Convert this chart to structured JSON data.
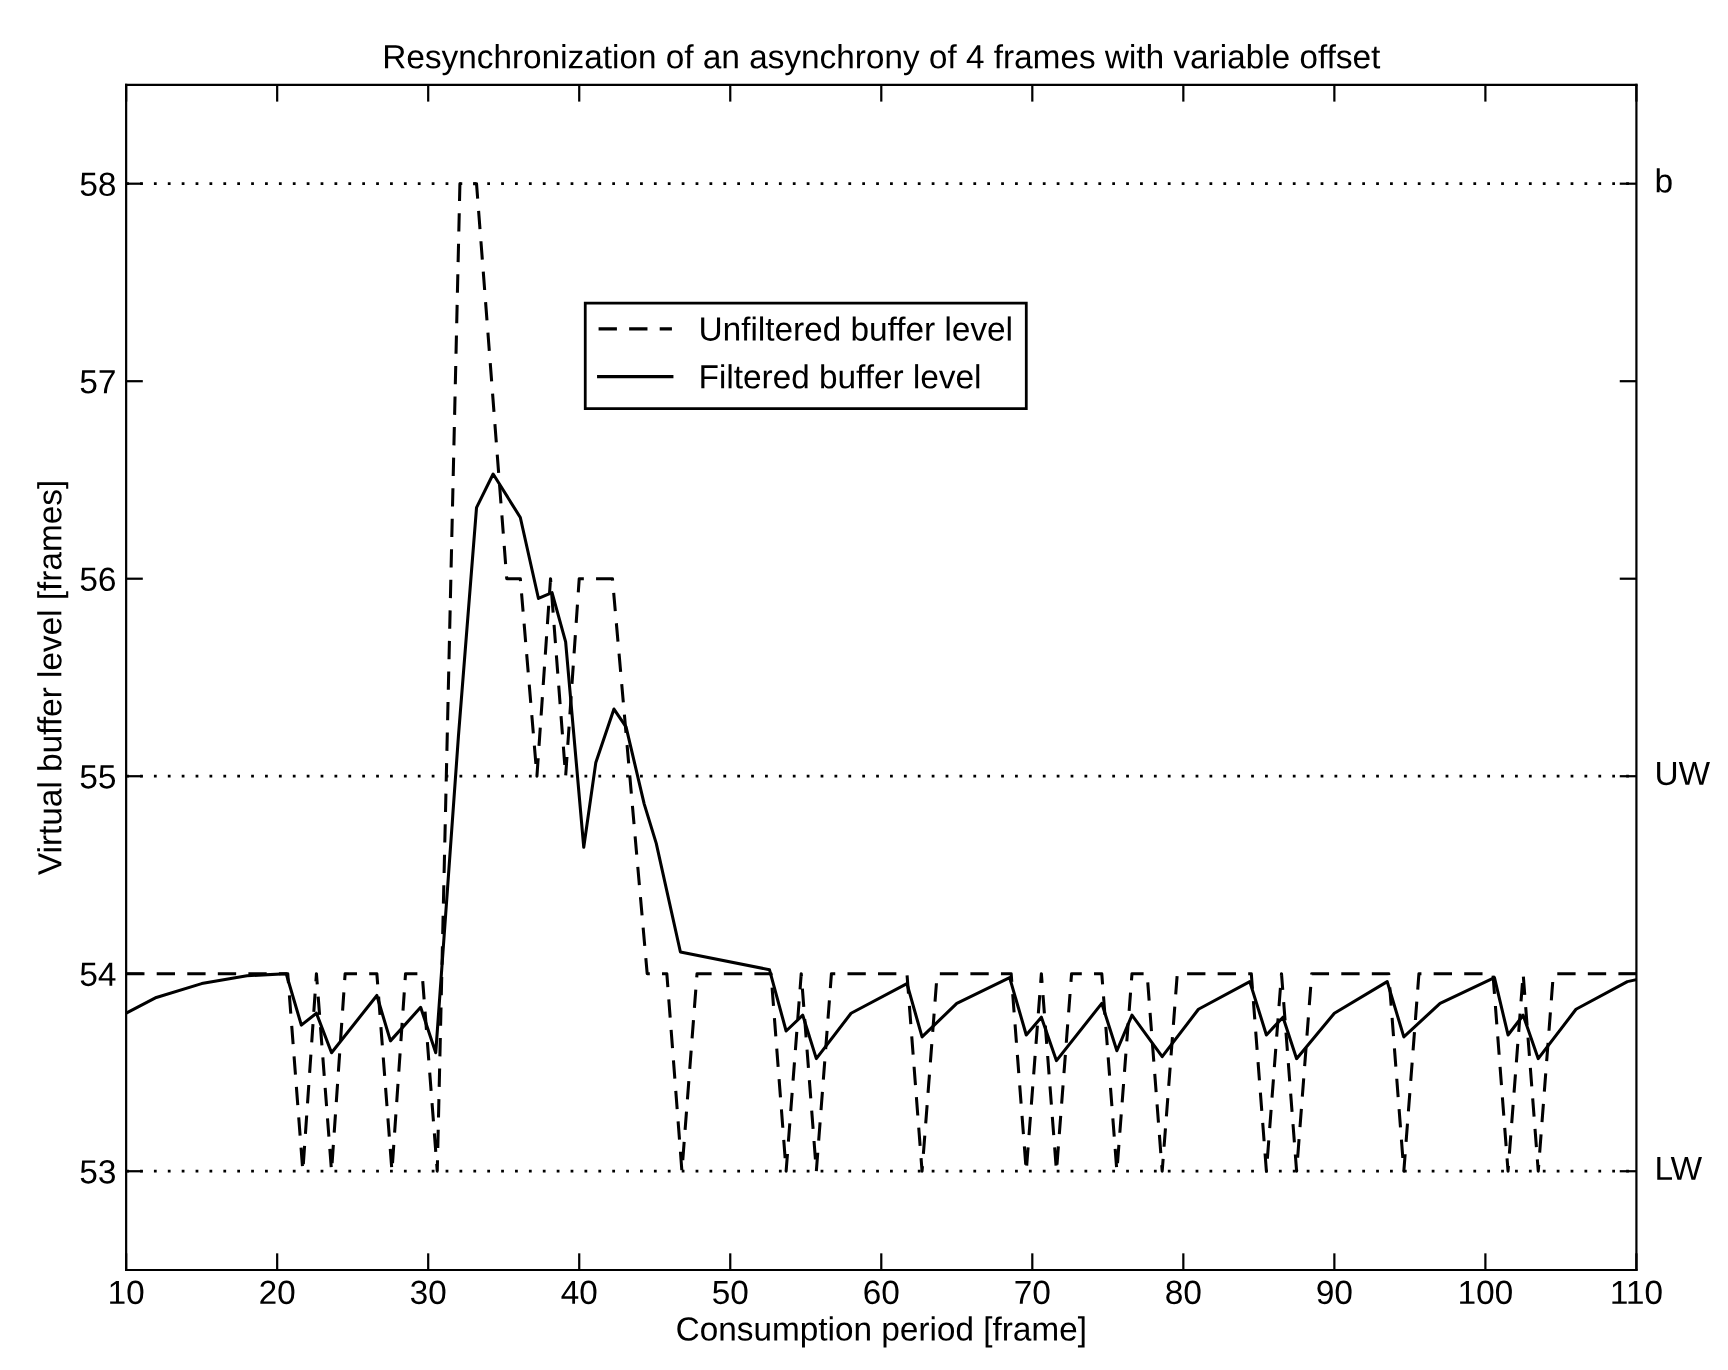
{
  "chart_data": {
    "type": "line",
    "title": "Resynchronization of an asynchrony of 4 frames with variable offset",
    "xlabel": "Consumption period [frame]",
    "ylabel": "Virtual buffer level [frames]",
    "xlim": [
      10,
      110
    ],
    "ylim": [
      52.5,
      58.5
    ],
    "xticks": [
      10,
      20,
      30,
      40,
      50,
      60,
      70,
      80,
      90,
      100,
      110
    ],
    "yticks": [
      53,
      54,
      55,
      56,
      57,
      58
    ],
    "grid": false,
    "legend": "top",
    "series": [
      {
        "name": "Unfiltered buffer level",
        "color": "#000000",
        "line_style": "dashed",
        "x": [
          10,
          20.7,
          21.7,
          22.6,
          23.6,
          24.5,
          26.6,
          27.6,
          28.5,
          29.6,
          30.6,
          32.1,
          33.2,
          35.2,
          36.1,
          37.2,
          38.1,
          39.1,
          40,
          42.2,
          44.5,
          45.8,
          46.8,
          47.8,
          52.7,
          53.7,
          54.7,
          55.7,
          56.7,
          61.7,
          62.7,
          63.7,
          68.6,
          69.6,
          70.6,
          71.6,
          72.6,
          74.6,
          75.6,
          76.6,
          77.6,
          78.6,
          79.6,
          84.5,
          85.5,
          86.5,
          87.5,
          88.5,
          93.6,
          94.6,
          95.6,
          100.5,
          101.5,
          102.5,
          103.5,
          104.5,
          110
        ],
        "values": [
          54,
          54,
          53,
          54,
          53,
          54,
          54,
          53,
          54,
          54,
          53,
          58,
          58,
          56,
          56,
          55,
          56,
          55,
          56,
          56,
          54,
          54,
          53,
          54,
          54,
          53,
          54,
          53,
          54,
          54,
          53,
          54,
          54,
          53,
          54,
          53,
          54,
          54,
          53,
          54,
          54,
          53,
          54,
          54,
          53,
          54,
          53,
          54,
          54,
          53,
          54,
          54,
          53,
          54,
          53,
          54,
          54
        ]
      },
      {
        "name": "Filtered buffer level",
        "color": "#000000",
        "line_style": "solid",
        "x": [
          10,
          12,
          15,
          18,
          20.6,
          21.6,
          22.6,
          23.6,
          26.6,
          27.5,
          29.5,
          30.5,
          32,
          33.2,
          34.3,
          36.1,
          37.3,
          38.2,
          39.1,
          40.3,
          41.1,
          42.3,
          43.1,
          44.3,
          45.1,
          46.7,
          52.6,
          53.7,
          54.8,
          55.7,
          58,
          61.7,
          62.7,
          65,
          68.5,
          69.6,
          70.6,
          71.6,
          74.6,
          75.6,
          76.6,
          78.6,
          81,
          84.4,
          85.5,
          86.6,
          87.5,
          90,
          93.5,
          94.6,
          97,
          100.6,
          101.5,
          102.5,
          103.5,
          106,
          109.4,
          110
        ],
        "values": [
          53.8,
          53.88,
          53.95,
          53.99,
          54,
          53.74,
          53.8,
          53.6,
          53.89,
          53.66,
          53.83,
          53.6,
          55.2,
          56.36,
          56.53,
          56.31,
          55.9,
          55.93,
          55.68,
          54.64,
          55.07,
          55.34,
          55.25,
          54.86,
          54.66,
          54.11,
          54.02,
          53.71,
          53.79,
          53.57,
          53.8,
          53.95,
          53.68,
          53.85,
          53.98,
          53.69,
          53.78,
          53.56,
          53.85,
          53.61,
          53.79,
          53.58,
          53.82,
          53.96,
          53.69,
          53.78,
          53.57,
          53.8,
          53.96,
          53.68,
          53.85,
          53.98,
          53.69,
          53.79,
          53.57,
          53.82,
          53.96,
          53.97
        ]
      }
    ],
    "ref_lines": [
      {
        "axis": "y",
        "value": 58,
        "label": "b",
        "line_style": "dotted",
        "color": "#000000"
      },
      {
        "axis": "y",
        "value": 55,
        "label": "UW",
        "line_style": "dotted",
        "color": "#000000"
      },
      {
        "axis": "y",
        "value": 53,
        "label": "LW",
        "line_style": "dotted",
        "color": "#000000"
      }
    ]
  }
}
